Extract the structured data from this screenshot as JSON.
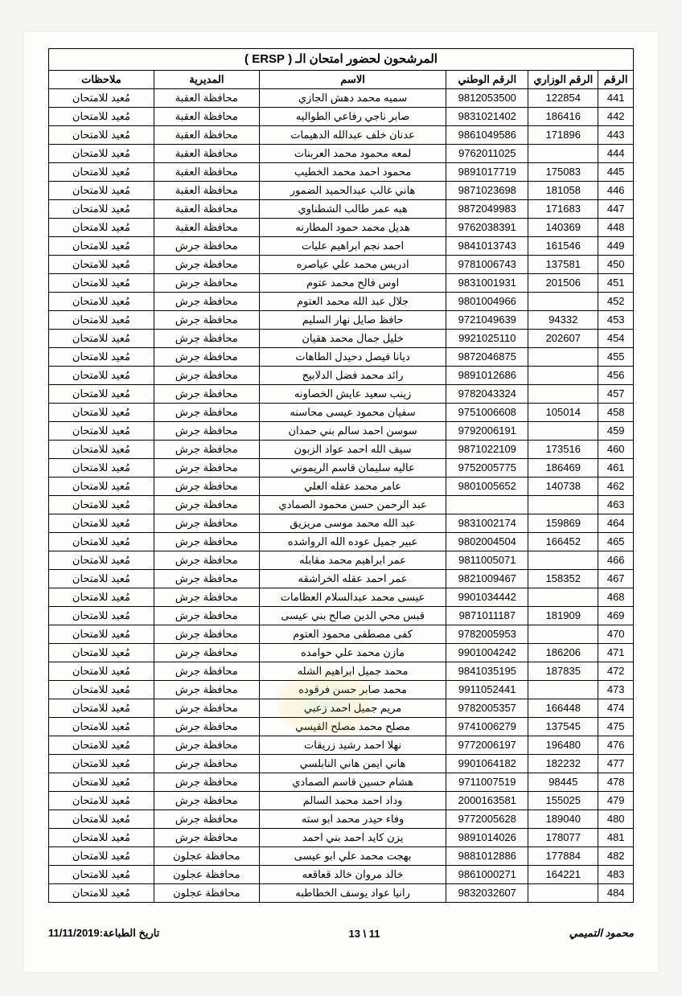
{
  "title": "المرشحون لحضور امتحان الـ ( ERSP )",
  "headers": {
    "num": "الرقم",
    "ministry": "الرقم الوزاري",
    "national": "الرقم الوطني",
    "name": "الاسم",
    "directorate": "المديرية",
    "notes": "ملاحظات"
  },
  "note_default": "مُعيد للامتحان",
  "directorates": {
    "aqaba": "محافظة العقبة",
    "jerash": "محافظة جرش",
    "ajloun": "محافظة عجلون"
  },
  "rows": [
    {
      "n": 441,
      "min": "122854",
      "nat": "9812053500",
      "name": "سميه محمد دهش الجازي",
      "dir": "aqaba"
    },
    {
      "n": 442,
      "min": "186416",
      "nat": "9831021402",
      "name": "صابر ناجي رفاعي الطواليه",
      "dir": "aqaba"
    },
    {
      "n": 443,
      "min": "171896",
      "nat": "9861049586",
      "name": "عدنان خلف عبدالله الدهيمات",
      "dir": "aqaba"
    },
    {
      "n": 444,
      "min": "",
      "nat": "9762011025",
      "name": "لمعه محمود محمد العربنات",
      "dir": "aqaba"
    },
    {
      "n": 445,
      "min": "175083",
      "nat": "9891017719",
      "name": "محمود احمد محمد الخطيب",
      "dir": "aqaba"
    },
    {
      "n": 446,
      "min": "181058",
      "nat": "9871023698",
      "name": "هاني غالب عبدالحميد الضمور",
      "dir": "aqaba"
    },
    {
      "n": 447,
      "min": "171683",
      "nat": "9872049983",
      "name": "هبه عمر طالب الشطناوي",
      "dir": "aqaba"
    },
    {
      "n": 448,
      "min": "140369",
      "nat": "9762038391",
      "name": "هديل محمد حمود المطارنه",
      "dir": "aqaba"
    },
    {
      "n": 449,
      "min": "161546",
      "nat": "9841013743",
      "name": "احمد نجم ابراهيم عليات",
      "dir": "jerash"
    },
    {
      "n": 450,
      "min": "137581",
      "nat": "9781006743",
      "name": "ادريس محمد علي عياصره",
      "dir": "jerash"
    },
    {
      "n": 451,
      "min": "201506",
      "nat": "9831001931",
      "name": "اوس فالح محمد عتوم",
      "dir": "jerash"
    },
    {
      "n": 452,
      "min": "",
      "nat": "9801004966",
      "name": "جلال عبد الله محمد العتوم",
      "dir": "jerash"
    },
    {
      "n": 453,
      "min": "94332",
      "nat": "9721049639",
      "name": "حافظ صايل نهار السليم",
      "dir": "jerash"
    },
    {
      "n": 454,
      "min": "202607",
      "nat": "9921025110",
      "name": "خليل جمال محمد هقيان",
      "dir": "jerash"
    },
    {
      "n": 455,
      "min": "",
      "nat": "9872046875",
      "name": "ديانا فيصل دحيدل الطاهات",
      "dir": "jerash"
    },
    {
      "n": 456,
      "min": "",
      "nat": "9891012686",
      "name": "رائد محمد فضل الدلابيح",
      "dir": "jerash"
    },
    {
      "n": 457,
      "min": "",
      "nat": "9782043324",
      "name": "زينب سعيد عايش الخصاونه",
      "dir": "jerash"
    },
    {
      "n": 458,
      "min": "105014",
      "nat": "9751006608",
      "name": "سفيان محمود عيسى محاسنه",
      "dir": "jerash"
    },
    {
      "n": 459,
      "min": "",
      "nat": "9792006191",
      "name": "سوسن احمد سالم بني حمدان",
      "dir": "jerash"
    },
    {
      "n": 460,
      "min": "173516",
      "nat": "9871022109",
      "name": "سيف الله احمد عواد الزبون",
      "dir": "jerash"
    },
    {
      "n": 461,
      "min": "186469",
      "nat": "9752005775",
      "name": "عاليه سليمان قاسم الريموني",
      "dir": "jerash"
    },
    {
      "n": 462,
      "min": "140738",
      "nat": "9801005652",
      "name": "عامر محمد عقله العلي",
      "dir": "jerash"
    },
    {
      "n": 463,
      "min": "",
      "nat": "",
      "name": "عبد الرحمن حسن محمود الصمادي",
      "dir": "jerash"
    },
    {
      "n": 464,
      "min": "159869",
      "nat": "9831002174",
      "name": "عبد الله محمد موسى مريزيق",
      "dir": "jerash"
    },
    {
      "n": 465,
      "min": "166452",
      "nat": "9802004504",
      "name": "عبير جميل عوده الله الرواشده",
      "dir": "jerash"
    },
    {
      "n": 466,
      "min": "",
      "nat": "9811005071",
      "name": "عمر ابراهيم محمد مقابله",
      "dir": "jerash"
    },
    {
      "n": 467,
      "min": "158352",
      "nat": "9821009467",
      "name": "عمر احمد عقله الخراشقه",
      "dir": "jerash"
    },
    {
      "n": 468,
      "min": "",
      "nat": "9901034442",
      "name": "عيسى محمد عبدالسلام العظامات",
      "dir": "jerash"
    },
    {
      "n": 469,
      "min": "181909",
      "nat": "9871011187",
      "name": "قبس محي الدين صالح بني عيسى",
      "dir": "jerash"
    },
    {
      "n": 470,
      "min": "",
      "nat": "9782005953",
      "name": "كفى مصطفى محمود العتوم",
      "dir": "jerash"
    },
    {
      "n": 471,
      "min": "186206",
      "nat": "9901004242",
      "name": "مازن محمد علي حوامده",
      "dir": "jerash"
    },
    {
      "n": 472,
      "min": "187835",
      "nat": "9841035195",
      "name": "محمد جميل ابراهيم الشله",
      "dir": "jerash"
    },
    {
      "n": 473,
      "min": "",
      "nat": "9911052441",
      "name": "محمد صابر حسن فرقوده",
      "dir": "jerash"
    },
    {
      "n": 474,
      "min": "166448",
      "nat": "9782005357",
      "name": "مريم جميل احمد زعبي",
      "dir": "jerash"
    },
    {
      "n": 475,
      "min": "137545",
      "nat": "9741006279",
      "name": "مصلح محمد مصلح القيسي",
      "dir": "jerash"
    },
    {
      "n": 476,
      "min": "196480",
      "nat": "9772006197",
      "name": "نهلا احمد رشيد زريقات",
      "dir": "jerash"
    },
    {
      "n": 477,
      "min": "182232",
      "nat": "9901064182",
      "name": "هاني ايمن هاني النابلسي",
      "dir": "jerash"
    },
    {
      "n": 478,
      "min": "98445",
      "nat": "9711007519",
      "name": "هشام حسين قاسم الصمادي",
      "dir": "jerash"
    },
    {
      "n": 479,
      "min": "155025",
      "nat": "2000163581",
      "name": "وداد احمد محمد السالم",
      "dir": "jerash"
    },
    {
      "n": 480,
      "min": "189040",
      "nat": "9772005628",
      "name": "وفاء حيدر محمد ابو سته",
      "dir": "jerash"
    },
    {
      "n": 481,
      "min": "178077",
      "nat": "9891014026",
      "name": "يزن كايد احمد بني احمد",
      "dir": "jerash"
    },
    {
      "n": 482,
      "min": "177884",
      "nat": "9881012886",
      "name": "بهجت محمد علي ابو عيسى",
      "dir": "ajloun"
    },
    {
      "n": 483,
      "min": "164221",
      "nat": "9861000271",
      "name": "خالد مروان خالد قعاقعه",
      "dir": "ajloun"
    },
    {
      "n": 484,
      "min": "",
      "nat": "9832032607",
      "name": "رانيا عواد يوسف الخطاطبه",
      "dir": "ajloun"
    }
  ],
  "footer": {
    "page": "11 \\ 13",
    "date_label": "تاريخ الطباعة:",
    "date": "11/11/2019",
    "signature": "محمود التميمي"
  }
}
